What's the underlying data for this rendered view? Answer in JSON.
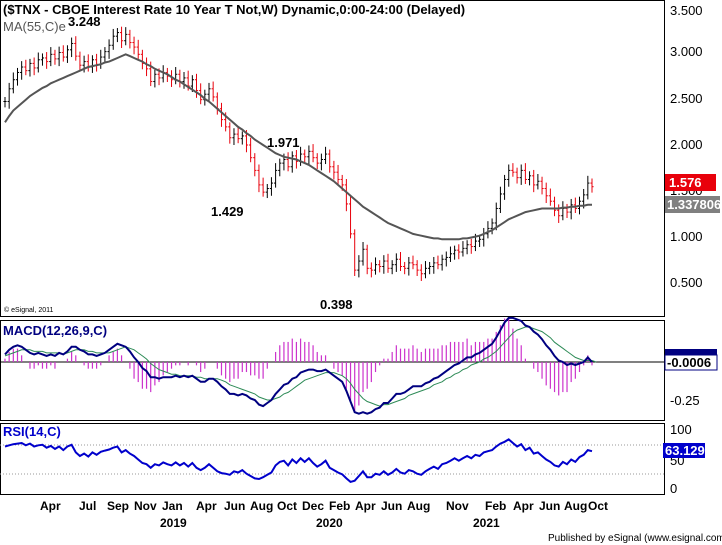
{
  "header": {
    "title": "($TNX - CBOE Interest Rate 10 Year T Not,W) Dynamic,0:00-24:00 (Delayed)",
    "ma_label": "MA(55,C)e",
    "copyright": "© eSignal, 2011"
  },
  "footer": {
    "publisher": "Published by eSignal (www.esignal.com)"
  },
  "colors": {
    "up_bar": "#000000",
    "down_bar": "#e8000b",
    "ma_line": "#555555",
    "macd_line": "#000080",
    "signal_line": "#2e8b57",
    "histogram": "#cc33cc",
    "rsi_line": "#0000cc",
    "last_price_bg": "#e8000b",
    "ma_badge_bg": "#808080",
    "macd_badge_bg": "#000080",
    "rsi_badge_bg": "#0000cc"
  },
  "chart_data": [
    {
      "type": "ohlc",
      "panel": "price",
      "ylim": [
        0.2,
        3.6
      ],
      "yticks": [
        "3.500",
        "3.000",
        "2.500",
        "2.000",
        "1.500",
        "1.000",
        "0.500"
      ],
      "last_value": "1.576",
      "ma_value": "1.337806",
      "annotations": [
        "3.248",
        "1.971",
        "1.429",
        "0.398"
      ],
      "series_close": [
        2.48,
        2.62,
        2.72,
        2.8,
        2.86,
        2.82,
        2.9,
        2.85,
        2.94,
        2.96,
        2.92,
        3.0,
        2.95,
        3.02,
        2.97,
        3.05,
        3.12,
        2.98,
        2.88,
        2.92,
        2.86,
        2.94,
        2.89,
        2.97,
        3.03,
        3.1,
        3.2,
        3.24,
        3.15,
        3.22,
        3.13,
        3.08,
        3.0,
        2.9,
        2.84,
        2.7,
        2.78,
        2.74,
        2.8,
        2.76,
        2.72,
        2.78,
        2.7,
        2.74,
        2.65,
        2.72,
        2.6,
        2.5,
        2.56,
        2.62,
        2.53,
        2.4,
        2.28,
        2.2,
        2.08,
        2.12,
        2.07,
        2.1,
        2.0,
        1.86,
        1.72,
        1.56,
        1.48,
        1.52,
        1.58,
        1.72,
        1.8,
        1.84,
        1.76,
        1.88,
        1.82,
        1.9,
        1.87,
        1.93,
        1.86,
        1.8,
        1.84,
        1.9,
        1.76,
        1.7,
        1.62,
        1.56,
        1.35,
        1.02,
        0.62,
        0.72,
        0.85,
        0.64,
        0.62,
        0.68,
        0.66,
        0.72,
        0.64,
        0.68,
        0.74,
        0.66,
        0.64,
        0.7,
        0.68,
        0.62,
        0.58,
        0.64,
        0.66,
        0.7,
        0.68,
        0.74,
        0.76,
        0.8,
        0.84,
        0.82,
        0.86,
        0.9,
        0.88,
        0.94,
        0.96,
        1.02,
        1.08,
        1.14,
        1.3,
        1.46,
        1.62,
        1.72,
        1.7,
        1.64,
        1.72,
        1.62,
        1.66,
        1.56,
        1.6,
        1.52,
        1.44,
        1.38,
        1.28,
        1.22,
        1.3,
        1.26,
        1.34,
        1.3,
        1.38,
        1.45,
        1.58,
        1.54
      ],
      "series_ma": [
        2.25,
        2.32,
        2.38,
        2.42,
        2.46,
        2.5,
        2.54,
        2.57,
        2.6,
        2.63,
        2.65,
        2.68,
        2.7,
        2.72,
        2.74,
        2.76,
        2.78,
        2.8,
        2.82,
        2.84,
        2.86,
        2.87,
        2.88,
        2.89,
        2.91,
        2.92,
        2.94,
        2.96,
        2.98,
        3.0,
        2.98,
        2.96,
        2.94,
        2.92,
        2.89,
        2.87,
        2.84,
        2.82,
        2.8,
        2.78,
        2.75,
        2.72,
        2.7,
        2.67,
        2.64,
        2.61,
        2.58,
        2.55,
        2.51,
        2.48,
        2.44,
        2.4,
        2.36,
        2.32,
        2.28,
        2.24,
        2.2,
        2.17,
        2.13,
        2.1,
        2.06,
        2.03,
        2.0,
        1.97,
        1.94,
        1.91,
        1.89,
        1.87,
        1.86,
        1.85,
        1.84,
        1.82,
        1.8,
        1.78,
        1.75,
        1.72,
        1.69,
        1.66,
        1.63,
        1.6,
        1.56,
        1.52,
        1.48,
        1.44,
        1.4,
        1.36,
        1.32,
        1.29,
        1.26,
        1.23,
        1.2,
        1.17,
        1.14,
        1.12,
        1.1,
        1.08,
        1.06,
        1.04,
        1.02,
        1.01,
        1.0,
        0.99,
        0.98,
        0.97,
        0.97,
        0.96,
        0.96,
        0.96,
        0.96,
        0.96,
        0.97,
        0.97,
        0.98,
        0.99,
        1.0,
        1.02,
        1.04,
        1.06,
        1.09,
        1.12,
        1.15,
        1.18,
        1.2,
        1.22,
        1.24,
        1.26,
        1.27,
        1.28,
        1.29,
        1.3,
        1.3,
        1.3,
        1.3,
        1.3,
        1.31,
        1.31,
        1.32,
        1.32,
        1.33,
        1.33,
        1.34,
        1.34
      ]
    },
    {
      "type": "line",
      "panel": "macd",
      "label": "MACD(12,26,9,C)",
      "ylim": [
        -0.33,
        0.33
      ],
      "yticks": [
        "-0.25"
      ],
      "last_value": "-0.0006",
      "series_macd": [
        0.05,
        0.08,
        0.1,
        0.11,
        0.1,
        0.08,
        0.06,
        0.05,
        0.06,
        0.05,
        0.04,
        0.05,
        0.04,
        0.06,
        0.05,
        0.07,
        0.1,
        0.1,
        0.08,
        0.07,
        0.05,
        0.05,
        0.04,
        0.05,
        0.06,
        0.08,
        0.1,
        0.12,
        0.11,
        0.1,
        0.07,
        0.03,
        0.0,
        -0.04,
        -0.06,
        -0.1,
        -0.1,
        -0.11,
        -0.1,
        -0.1,
        -0.1,
        -0.09,
        -0.1,
        -0.09,
        -0.1,
        -0.09,
        -0.11,
        -0.13,
        -0.13,
        -0.11,
        -0.11,
        -0.13,
        -0.16,
        -0.18,
        -0.21,
        -0.21,
        -0.22,
        -0.21,
        -0.22,
        -0.24,
        -0.25,
        -0.28,
        -0.29,
        -0.27,
        -0.25,
        -0.21,
        -0.18,
        -0.15,
        -0.14,
        -0.11,
        -0.1,
        -0.07,
        -0.06,
        -0.05,
        -0.05,
        -0.06,
        -0.06,
        -0.05,
        -0.07,
        -0.09,
        -0.11,
        -0.13,
        -0.19,
        -0.26,
        -0.33,
        -0.34,
        -0.33,
        -0.34,
        -0.33,
        -0.31,
        -0.3,
        -0.27,
        -0.27,
        -0.24,
        -0.21,
        -0.21,
        -0.2,
        -0.18,
        -0.16,
        -0.16,
        -0.16,
        -0.14,
        -0.13,
        -0.11,
        -0.1,
        -0.08,
        -0.06,
        -0.04,
        -0.02,
        -0.01,
        0.01,
        0.03,
        0.03,
        0.05,
        0.06,
        0.08,
        0.1,
        0.12,
        0.16,
        0.21,
        0.26,
        0.29,
        0.29,
        0.28,
        0.27,
        0.24,
        0.23,
        0.2,
        0.18,
        0.15,
        0.11,
        0.08,
        0.04,
        0.01,
        0.0,
        -0.02,
        -0.01,
        -0.02,
        -0.01,
        0.0,
        0.03,
        0.0
      ],
      "series_signal": [
        0.04,
        0.05,
        0.06,
        0.07,
        0.08,
        0.08,
        0.08,
        0.07,
        0.07,
        0.07,
        0.06,
        0.06,
        0.06,
        0.06,
        0.05,
        0.06,
        0.07,
        0.08,
        0.08,
        0.08,
        0.07,
        0.07,
        0.06,
        0.06,
        0.06,
        0.06,
        0.07,
        0.08,
        0.09,
        0.1,
        0.09,
        0.08,
        0.06,
        0.04,
        0.02,
        -0.01,
        -0.03,
        -0.05,
        -0.06,
        -0.07,
        -0.08,
        -0.08,
        -0.09,
        -0.09,
        -0.09,
        -0.09,
        -0.1,
        -0.1,
        -0.11,
        -0.11,
        -0.11,
        -0.11,
        -0.12,
        -0.13,
        -0.15,
        -0.16,
        -0.17,
        -0.18,
        -0.19,
        -0.2,
        -0.21,
        -0.23,
        -0.24,
        -0.25,
        -0.25,
        -0.24,
        -0.23,
        -0.21,
        -0.2,
        -0.18,
        -0.16,
        -0.14,
        -0.12,
        -0.11,
        -0.1,
        -0.09,
        -0.08,
        -0.07,
        -0.07,
        -0.07,
        -0.08,
        -0.09,
        -0.11,
        -0.14,
        -0.18,
        -0.21,
        -0.24,
        -0.26,
        -0.27,
        -0.28,
        -0.29,
        -0.28,
        -0.28,
        -0.27,
        -0.26,
        -0.25,
        -0.24,
        -0.22,
        -0.21,
        -0.2,
        -0.19,
        -0.18,
        -0.17,
        -0.15,
        -0.14,
        -0.13,
        -0.11,
        -0.1,
        -0.08,
        -0.07,
        -0.05,
        -0.04,
        -0.02,
        -0.01,
        0.0,
        0.02,
        0.03,
        0.05,
        0.07,
        0.1,
        0.13,
        0.16,
        0.19,
        0.21,
        0.22,
        0.23,
        0.23,
        0.22,
        0.21,
        0.2,
        0.18,
        0.16,
        0.13,
        0.11,
        0.09,
        0.07,
        0.05,
        0.03,
        0.02,
        0.01,
        0.01,
        0.01,
        0.0
      ]
    },
    {
      "type": "line",
      "panel": "rsi",
      "label": "RSI(14,C)",
      "ylim": [
        0,
        100
      ],
      "yticks": [
        "100",
        "50",
        "0"
      ],
      "last_value": "63.129",
      "series_rsi": [
        72,
        74,
        76,
        77,
        78,
        74,
        77,
        72,
        74,
        75,
        70,
        73,
        68,
        72,
        66,
        72,
        75,
        62,
        56,
        60,
        55,
        62,
        58,
        63,
        65,
        67,
        70,
        72,
        62,
        66,
        60,
        56,
        50,
        44,
        42,
        36,
        42,
        40,
        45,
        42,
        40,
        45,
        40,
        44,
        38,
        44,
        36,
        32,
        36,
        42,
        36,
        30,
        27,
        26,
        24,
        30,
        28,
        32,
        26,
        22,
        18,
        17,
        20,
        24,
        28,
        40,
        46,
        48,
        40,
        50,
        44,
        52,
        46,
        52,
        44,
        38,
        42,
        48,
        36,
        32,
        28,
        25,
        18,
        12,
        14,
        22,
        30,
        20,
        20,
        26,
        24,
        30,
        24,
        28,
        34,
        28,
        26,
        32,
        30,
        26,
        24,
        30,
        34,
        38,
        34,
        42,
        44,
        48,
        52,
        48,
        52,
        56,
        52,
        58,
        56,
        62,
        64,
        66,
        72,
        77,
        80,
        84,
        78,
        72,
        76,
        66,
        70,
        60,
        62,
        56,
        50,
        46,
        40,
        38,
        46,
        42,
        50,
        46,
        54,
        58,
        66,
        64
      ]
    }
  ],
  "axis": {
    "months": [
      "Apr",
      "Jul",
      "Sep",
      "Nov",
      "Jan",
      "Apr",
      "Jun",
      "Aug",
      "Oct",
      "Dec",
      "Feb",
      "Apr",
      "Jun",
      "Aug",
      "Nov",
      "Feb",
      "Apr",
      "Jun",
      "Aug",
      "Oct"
    ],
    "years": [
      "2019",
      "2020",
      "2021"
    ]
  }
}
